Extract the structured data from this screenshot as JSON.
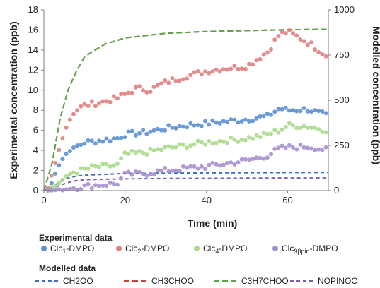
{
  "chart_data": {
    "type": "scatter",
    "xlabel": "Time (min)",
    "ylabel": "Experimental concentration (ppb)",
    "y2label": "Modelled concentration (ppb)",
    "xlim": [
      0,
      70
    ],
    "ylim": [
      0,
      18
    ],
    "y2lim": [
      0,
      1000
    ],
    "xticks": [
      "0",
      "20",
      "40",
      "60"
    ],
    "yticks": [
      "0",
      "2",
      "4",
      "6",
      "8",
      "10",
      "12",
      "14",
      "16",
      "18"
    ],
    "y2ticks": [
      "0",
      "250",
      "500",
      "750",
      "1000"
    ],
    "grid": false,
    "legend_position": "bottom",
    "experimental_heading": "Experimental data",
    "modelled_heading": "Modelled data",
    "experimental_series": [
      {
        "name": "Clc1-DMPO",
        "label_parts": [
          "Clc",
          "1",
          "-DMPO"
        ],
        "color": "#5b8fd2",
        "anchors": [
          [
            1,
            0
          ],
          [
            2,
            0.8
          ],
          [
            3,
            2.0
          ],
          [
            4,
            2.8
          ],
          [
            5,
            3.4
          ],
          [
            6,
            3.9
          ],
          [
            8,
            4.4
          ],
          [
            10,
            4.8
          ],
          [
            14,
            5.0
          ],
          [
            18,
            5.2
          ],
          [
            20,
            5.6
          ],
          [
            25,
            5.8
          ],
          [
            30,
            6.2
          ],
          [
            35,
            6.5
          ],
          [
            40,
            6.7
          ],
          [
            45,
            6.9
          ],
          [
            50,
            7.1
          ],
          [
            55,
            7.4
          ],
          [
            58,
            8.2
          ],
          [
            60,
            8.0
          ],
          [
            65,
            8.1
          ],
          [
            70,
            7.4
          ]
        ]
      },
      {
        "name": "Clc2-DMPO",
        "label_parts": [
          "Clc",
          "2",
          "-DMPO"
        ],
        "color": "#e07f7f",
        "anchors": [
          [
            1,
            0.2
          ],
          [
            2,
            1.6
          ],
          [
            3,
            3.0
          ],
          [
            4,
            4.5
          ],
          [
            5,
            5.8
          ],
          [
            6,
            6.8
          ],
          [
            7,
            7.5
          ],
          [
            8,
            8.0
          ],
          [
            10,
            8.5
          ],
          [
            14,
            8.8
          ],
          [
            18,
            9.2
          ],
          [
            20,
            9.6
          ],
          [
            23,
            10.2
          ],
          [
            26,
            10.0
          ],
          [
            30,
            10.8
          ],
          [
            35,
            11.4
          ],
          [
            40,
            11.9
          ],
          [
            45,
            12.2
          ],
          [
            50,
            12.4
          ],
          [
            55,
            13.8
          ],
          [
            58,
            15.6
          ],
          [
            60,
            15.8
          ],
          [
            63,
            15.2
          ],
          [
            66,
            14.5
          ],
          [
            70,
            13.3
          ]
        ]
      },
      {
        "name": "Clc4-DMPO",
        "label_parts": [
          "Clc",
          "4",
          "-DMPO"
        ],
        "color": "#a8d98a",
        "anchors": [
          [
            1,
            0
          ],
          [
            3,
            0.5
          ],
          [
            5,
            1.2
          ],
          [
            7,
            1.8
          ],
          [
            9,
            2.0
          ],
          [
            12,
            2.3
          ],
          [
            18,
            2.5
          ],
          [
            20,
            3.6
          ],
          [
            25,
            3.8
          ],
          [
            30,
            4.2
          ],
          [
            35,
            4.5
          ],
          [
            40,
            4.8
          ],
          [
            45,
            5.0
          ],
          [
            50,
            5.2
          ],
          [
            55,
            5.6
          ],
          [
            58,
            6.0
          ],
          [
            60,
            6.5
          ],
          [
            65,
            6.4
          ],
          [
            70,
            6.0
          ]
        ]
      },
      {
        "name": "Clc9βpin-DMPO",
        "label_parts": [
          "Clc",
          "9βpin",
          "-DMPO"
        ],
        "color": "#a78fd0",
        "anchors": [
          [
            1,
            0
          ],
          [
            5,
            0.1
          ],
          [
            8,
            0.3
          ],
          [
            12,
            0.5
          ],
          [
            18,
            0.7
          ],
          [
            20,
            1.6
          ],
          [
            25,
            1.7
          ],
          [
            30,
            2.0
          ],
          [
            35,
            2.2
          ],
          [
            40,
            2.4
          ],
          [
            45,
            2.7
          ],
          [
            50,
            3.0
          ],
          [
            55,
            3.5
          ],
          [
            58,
            4.2
          ],
          [
            60,
            4.3
          ],
          [
            65,
            4.4
          ],
          [
            70,
            4.0
          ]
        ]
      }
    ],
    "modelled_series": [
      {
        "name": "CH2OO",
        "color": "#3a6ec9",
        "dash": "5,4",
        "points": [
          [
            0,
            0
          ],
          [
            2,
            20
          ],
          [
            4,
            50
          ],
          [
            6,
            70
          ],
          [
            8,
            80
          ],
          [
            10,
            85
          ],
          [
            15,
            90
          ],
          [
            20,
            95
          ],
          [
            30,
            97
          ],
          [
            40,
            98
          ],
          [
            50,
            99
          ],
          [
            60,
            100
          ],
          [
            70,
            100
          ]
        ]
      },
      {
        "name": "CH3CHOO",
        "color": "#c9453b",
        "dash": "8,4",
        "points": [
          [
            0,
            0
          ],
          [
            2,
            150
          ],
          [
            4,
            400
          ],
          [
            6,
            560
          ],
          [
            8,
            660
          ],
          [
            10,
            740
          ],
          [
            12,
            770
          ],
          [
            15,
            810
          ],
          [
            20,
            845
          ],
          [
            30,
            870
          ],
          [
            40,
            880
          ],
          [
            50,
            885
          ],
          [
            60,
            890
          ],
          [
            70,
            893
          ]
        ]
      },
      {
        "name": "C3H7CHOO",
        "color": "#5aa64a",
        "dash": "8,4",
        "points": [
          [
            0,
            0
          ],
          [
            2,
            150
          ],
          [
            4,
            400
          ],
          [
            6,
            560
          ],
          [
            8,
            660
          ],
          [
            10,
            740
          ],
          [
            12,
            770
          ],
          [
            15,
            810
          ],
          [
            20,
            845
          ],
          [
            30,
            870
          ],
          [
            40,
            880
          ],
          [
            50,
            885
          ],
          [
            60,
            890
          ],
          [
            70,
            893
          ]
        ]
      },
      {
        "name": "NOPINOO",
        "color": "#7b5fb5",
        "dash": "5,4",
        "points": [
          [
            0,
            0
          ],
          [
            2,
            10
          ],
          [
            4,
            30
          ],
          [
            6,
            45
          ],
          [
            8,
            55
          ],
          [
            10,
            60
          ],
          [
            15,
            63
          ],
          [
            20,
            65
          ],
          [
            30,
            67
          ],
          [
            40,
            68
          ],
          [
            50,
            69
          ],
          [
            60,
            70
          ],
          [
            70,
            70
          ]
        ]
      }
    ]
  }
}
